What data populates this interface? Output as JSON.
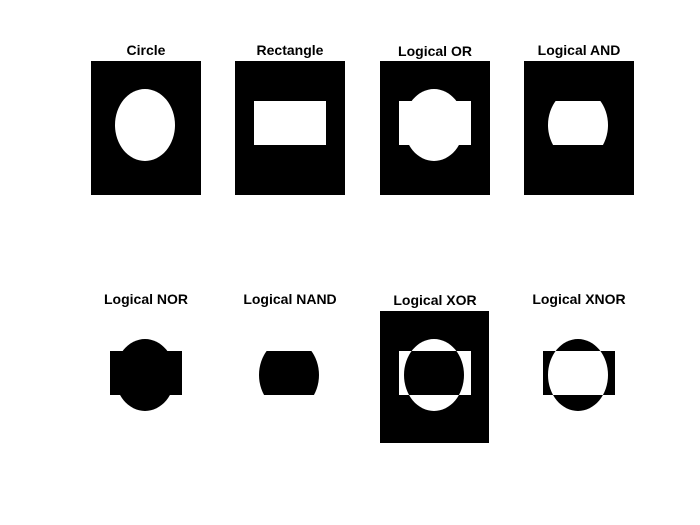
{
  "figure": {
    "panels": [
      {
        "title": "Circle",
        "operation": "circle"
      },
      {
        "title": "Rectangle",
        "operation": "rectangle"
      },
      {
        "title": "Logical OR",
        "operation": "or"
      },
      {
        "title": "Logical AND",
        "operation": "and"
      },
      {
        "title": "Logical NOR",
        "operation": "nor"
      },
      {
        "title": "Logical NAND",
        "operation": "nand"
      },
      {
        "title": "Logical XOR",
        "operation": "xor"
      },
      {
        "title": "Logical XNOR",
        "operation": "xnor"
      }
    ]
  },
  "colors": {
    "background": "#000000",
    "foreground": "#ffffff",
    "page": "#ffffff"
  }
}
